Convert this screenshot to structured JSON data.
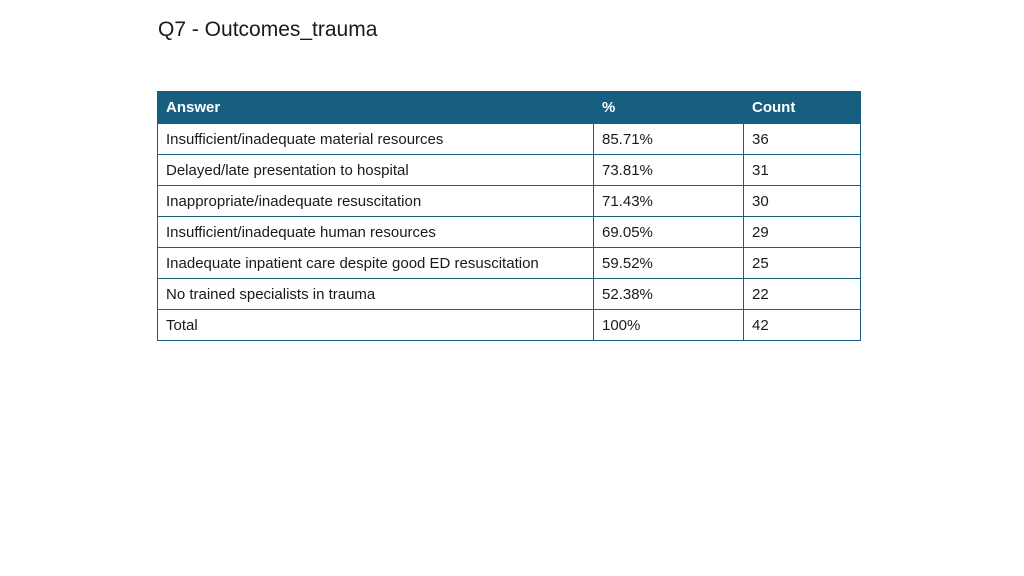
{
  "slide": {
    "title": "Q7 - Outcomes_trauma"
  },
  "table": {
    "headers": {
      "answer": "Answer",
      "percent": "%",
      "count": "Count"
    },
    "rows": [
      {
        "answer": "Insufficient/inadequate material resources",
        "percent": "85.71%",
        "count": "36"
      },
      {
        "answer": "Delayed/late presentation to hospital",
        "percent": "73.81%",
        "count": "31"
      },
      {
        "answer": "Inappropriate/inadequate resuscitation",
        "percent": "71.43%",
        "count": "30"
      },
      {
        "answer": "Insufficient/inadequate human resources",
        "percent": "69.05%",
        "count": "29"
      },
      {
        "answer": "Inadequate inpatient care despite good ED resuscitation",
        "percent": "59.52%",
        "count": "25"
      },
      {
        "answer": "No trained specialists in trauma",
        "percent": "52.38%",
        "count": "22"
      },
      {
        "answer": "Total",
        "percent": "100%",
        "count": "42"
      }
    ]
  },
  "colors": {
    "header_background": "#175f80",
    "header_text": "#ffffff",
    "border": "#175f80"
  }
}
